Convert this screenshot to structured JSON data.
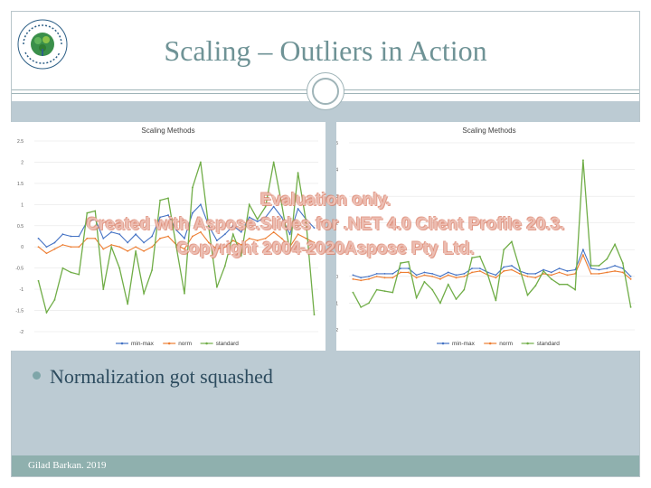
{
  "slide": {
    "title": "Scaling – Outliers in Action",
    "bullet": "Normalization got squashed",
    "footer": "Gilad Barkan. 2019",
    "logo_text": "המרכז האקדמי רופין Ruppin Academic Center"
  },
  "watermark": {
    "line1": "Evaluation only.",
    "line2": "Created with Aspose.Slides for .NET 4.0 Client Profile 20.3.",
    "line3": "Copyright 2004-2020Aspose Pty Ltd."
  },
  "colors": {
    "min_max": "#4472c4",
    "norm": "#ed7d31",
    "standard": "#70ad47"
  },
  "chart_data": [
    {
      "type": "line",
      "title": "Scaling Methods",
      "ylim": [
        -2,
        2.5
      ],
      "yticks": [
        "2.5",
        "2",
        "1.5",
        "1",
        "0.5",
        "0",
        "-0.5",
        "-1",
        "-1.5",
        "-2"
      ],
      "x": [
        1,
        2,
        3,
        4,
        5,
        6,
        7,
        8,
        9,
        10,
        11,
        12,
        13,
        14,
        15,
        16,
        17,
        18,
        19,
        20,
        21,
        22,
        23,
        24,
        25,
        26,
        27,
        28,
        29,
        30,
        31,
        32,
        33,
        34,
        35
      ],
      "series": [
        {
          "name": "min-max",
          "values": [
            0.2,
            0.0,
            0.1,
            0.3,
            0.25,
            0.25,
            0.6,
            0.65,
            0.2,
            0.35,
            0.3,
            0.1,
            0.3,
            0.1,
            0.25,
            0.7,
            0.75,
            0.4,
            0.2,
            0.8,
            1.0,
            0.5,
            0.15,
            0.3,
            0.5,
            0.35,
            0.7,
            0.6,
            0.7,
            0.95,
            0.7,
            0.3,
            0.9,
            0.65,
            0.45
          ]
        },
        {
          "name": "norm",
          "values": [
            0.0,
            -0.15,
            -0.05,
            0.05,
            0.0,
            0.0,
            0.2,
            0.2,
            -0.05,
            0.05,
            0.0,
            -0.1,
            0.0,
            -0.1,
            0.0,
            0.2,
            0.25,
            0.05,
            -0.05,
            0.25,
            0.35,
            0.1,
            -0.05,
            0.0,
            0.15,
            0.05,
            0.2,
            0.15,
            0.2,
            0.35,
            0.2,
            0.0,
            0.3,
            0.2,
            0.1
          ]
        },
        {
          "name": "standard",
          "values": [
            -0.8,
            -1.55,
            -1.25,
            -0.5,
            -0.6,
            -0.65,
            0.8,
            0.85,
            -1.0,
            0.0,
            -0.5,
            -1.35,
            -0.1,
            -1.1,
            -0.55,
            1.1,
            1.15,
            0.0,
            -1.1,
            1.4,
            2.0,
            0.45,
            -0.95,
            -0.45,
            0.3,
            -0.2,
            1.0,
            0.65,
            0.95,
            2.0,
            1.0,
            -0.1,
            1.75,
            0.6,
            -1.6
          ]
        }
      ],
      "legend": "bottom"
    },
    {
      "type": "line",
      "title": "Scaling Methods",
      "ylim": [
        -2,
        5
      ],
      "yticks": [
        "5",
        "4",
        "3",
        "2",
        "1",
        "0",
        "-1",
        "-2"
      ],
      "x": [
        1,
        2,
        3,
        4,
        5,
        6,
        7,
        8,
        9,
        10,
        11,
        12,
        13,
        14,
        15,
        16,
        17,
        18,
        19,
        20,
        21,
        22,
        23,
        24,
        25,
        26,
        27,
        28,
        29,
        30,
        31,
        32,
        33,
        34,
        35,
        36
      ],
      "series": [
        {
          "name": "min-max",
          "values": [
            0.05,
            -0.05,
            0.0,
            0.1,
            0.1,
            0.1,
            0.3,
            0.3,
            0.05,
            0.15,
            0.1,
            0.0,
            0.15,
            0.05,
            0.1,
            0.3,
            0.3,
            0.15,
            0.05,
            0.35,
            0.4,
            0.2,
            0.1,
            0.1,
            0.25,
            0.15,
            0.3,
            0.2,
            0.25,
            1.0,
            0.3,
            0.25,
            0.3,
            0.4,
            0.3,
            0.0
          ]
        },
        {
          "name": "norm",
          "values": [
            -0.1,
            -0.15,
            -0.1,
            0.0,
            -0.05,
            -0.05,
            0.15,
            0.15,
            -0.05,
            0.05,
            0.0,
            -0.1,
            0.05,
            -0.05,
            0.0,
            0.15,
            0.2,
            0.05,
            -0.05,
            0.2,
            0.25,
            0.1,
            0.0,
            -0.05,
            0.1,
            0.05,
            0.15,
            0.05,
            0.1,
            0.8,
            0.1,
            0.1,
            0.15,
            0.2,
            0.15,
            -0.1
          ]
        },
        {
          "name": "standard",
          "values": [
            -0.6,
            -1.15,
            -1.0,
            -0.5,
            -0.55,
            -0.6,
            0.5,
            0.55,
            -0.8,
            -0.2,
            -0.5,
            -1.0,
            -0.3,
            -0.85,
            -0.5,
            0.7,
            0.75,
            0.05,
            -0.9,
            1.0,
            1.3,
            0.3,
            -0.7,
            -0.35,
            0.2,
            -0.1,
            -0.3,
            -0.3,
            -0.5,
            4.35,
            0.4,
            0.4,
            0.65,
            1.2,
            0.5,
            -1.15
          ]
        }
      ],
      "legend": "bottom"
    }
  ]
}
